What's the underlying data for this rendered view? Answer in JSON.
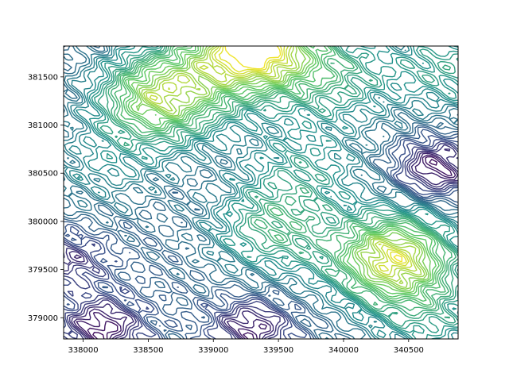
{
  "chart_data": {
    "type": "contour",
    "title": "",
    "xlabel": "",
    "ylabel": "",
    "xlim": [
      337850,
      340880
    ],
    "ylim": [
      378780,
      381820
    ],
    "x_ticks": [
      338000,
      338500,
      339000,
      339500,
      340000,
      340500
    ],
    "x_tick_labels": [
      "338000",
      "338500",
      "339000",
      "339500",
      "340000",
      "340500"
    ],
    "y_ticks": [
      379000,
      379500,
      380000,
      380500,
      381000,
      381500
    ],
    "y_tick_labels": [
      "379000",
      "379500",
      "380000",
      "380500",
      "381000",
      "381500"
    ],
    "colormap": "viridis",
    "colormap_stops": [
      "#440154",
      "#3b528b",
      "#21918c",
      "#5ec962",
      "#fde725"
    ],
    "grid": false,
    "legend": "none",
    "field_peaks": [
      {
        "x": 339300,
        "y": 381800,
        "level": 1.0
      },
      {
        "x": 338600,
        "y": 381300,
        "level": 0.85
      },
      {
        "x": 340380,
        "y": 379620,
        "level": 0.92
      },
      {
        "x": 339450,
        "y": 379920,
        "level": 0.6
      },
      {
        "x": 339700,
        "y": 380580,
        "level": 0.5
      },
      {
        "x": 340850,
        "y": 381600,
        "level": 0.55
      },
      {
        "x": 338150,
        "y": 380550,
        "level": 0.45
      },
      {
        "x": 340700,
        "y": 378950,
        "level": 0.5
      },
      {
        "x": 339950,
        "y": 381500,
        "level": 0.55
      }
    ],
    "field_lows": [
      {
        "x": 338150,
        "y": 378900,
        "level": 0.05
      },
      {
        "x": 339300,
        "y": 378900,
        "level": 0.08
      },
      {
        "x": 340700,
        "y": 380550,
        "level": 0.05
      },
      {
        "x": 337900,
        "y": 379600,
        "level": 0.15
      },
      {
        "x": 340050,
        "y": 380000,
        "level": 0.3
      }
    ]
  }
}
